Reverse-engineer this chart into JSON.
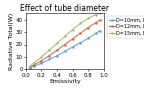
{
  "title": "Effect of tube diameter",
  "xlabel": "Emissivity",
  "ylabel": "Radiative Total(W)",
  "xlim": [
    0,
    1.0
  ],
  "ylim": [
    0,
    45
  ],
  "curves": [
    {
      "label": "D=10mm, L=100mm",
      "color": "#6699cc",
      "marker": "s",
      "x": [
        0.05,
        0.1,
        0.2,
        0.3,
        0.4,
        0.5,
        0.6,
        0.7,
        0.8,
        0.9,
        0.95
      ],
      "y": [
        1.2,
        2.5,
        5.0,
        8.0,
        11.0,
        14.5,
        18.0,
        21.5,
        25.0,
        29.0,
        31.0
      ]
    },
    {
      "label": "D=12mm, L=100mm",
      "color": "#cc6644",
      "marker": "s",
      "x": [
        0.05,
        0.1,
        0.2,
        0.3,
        0.4,
        0.5,
        0.6,
        0.7,
        0.8,
        0.9,
        0.95
      ],
      "y": [
        1.8,
        3.5,
        7.0,
        11.0,
        15.5,
        20.0,
        24.5,
        29.0,
        33.5,
        37.5,
        39.5
      ]
    },
    {
      "label": "D=15mm, L=100mm",
      "color": "#99bb66",
      "marker": "o",
      "x": [
        0.05,
        0.1,
        0.2,
        0.3,
        0.4,
        0.5,
        0.6,
        0.7,
        0.8,
        0.9,
        0.95
      ],
      "y": [
        2.5,
        5.0,
        10.0,
        15.5,
        21.0,
        26.5,
        32.0,
        37.0,
        41.0,
        44.0,
        45.5
      ]
    }
  ],
  "xticks": [
    0.0,
    0.2,
    0.4,
    0.6,
    0.8,
    1.0
  ],
  "yticks": [
    0,
    10,
    20,
    30,
    40
  ],
  "title_fontsize": 5.5,
  "label_fontsize": 4.5,
  "tick_fontsize": 4.0,
  "legend_fontsize": 3.5,
  "background_color": "#ffffff",
  "linewidth": 0.7,
  "markersize": 1.2
}
